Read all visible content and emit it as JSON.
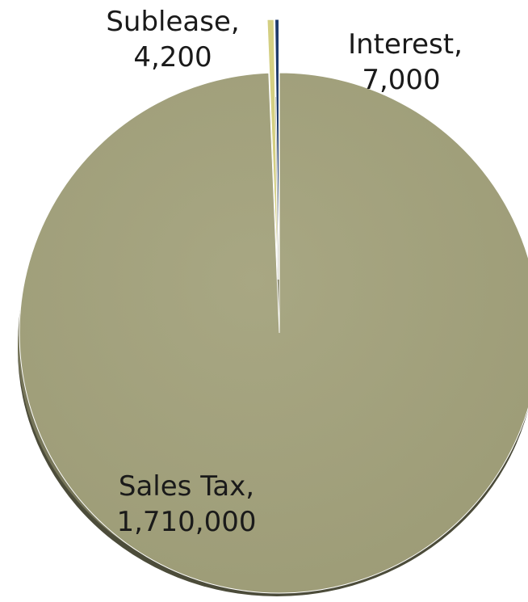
{
  "chart_data": {
    "type": "pie",
    "categories": [
      "Sales Tax",
      "Interest",
      "Sublease"
    ],
    "values": [
      1710000,
      7000,
      4200
    ],
    "colors": [
      "#a09f7a",
      "#d4cf82",
      "#1f3b6b"
    ],
    "labels": [
      {
        "name": "Sublease,",
        "value": "4,200"
      },
      {
        "name": "Interest,",
        "value": "7,000"
      },
      {
        "name": "Sales Tax,",
        "value": "1,710,000"
      }
    ],
    "title": "",
    "legend": "none"
  }
}
